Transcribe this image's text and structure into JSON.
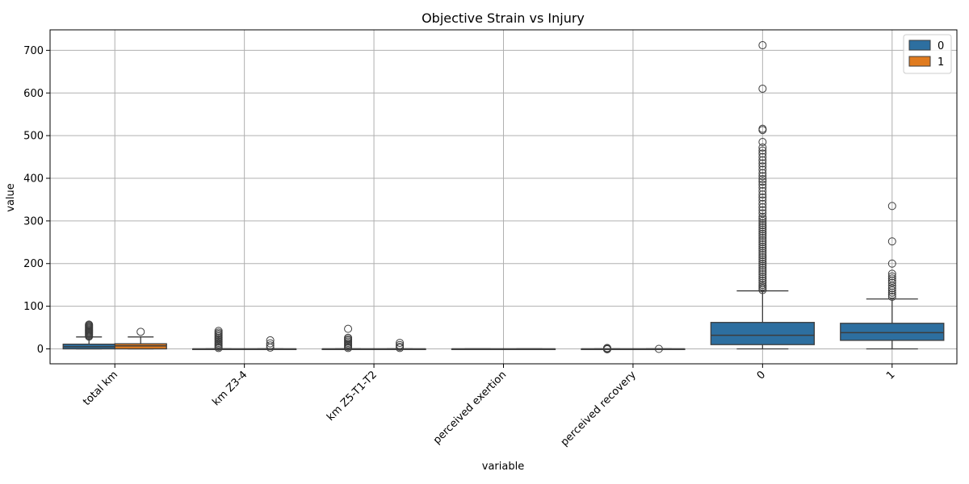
{
  "chart_data": {
    "type": "box",
    "title": "Objective Strain vs Injury",
    "xlabel": "variable",
    "ylabel": "value",
    "ylim": [
      -35,
      748
    ],
    "yticks": [
      0,
      100,
      200,
      300,
      400,
      500,
      600,
      700
    ],
    "grid": true,
    "legend": {
      "placement": "top-right",
      "entries": [
        "0",
        "1"
      ]
    },
    "colors": {
      "0": "#2d6fa0",
      "1": "#e07b1f",
      "grid": "#b0b0b0",
      "line": "#3d3d3d"
    },
    "categories": [
      "total km",
      "km Z3-4",
      "km Z5-T1-T2",
      "perceived exertion",
      "perceived recovery",
      "0",
      "1"
    ],
    "boxes": [
      {
        "category": "total km",
        "series": "0",
        "q1": 0,
        "median": 5,
        "q3": 11,
        "whisker_low": 0,
        "whisker_high": 28,
        "outliers": [
          29,
          31,
          33,
          35,
          37,
          39,
          41,
          43,
          45,
          47,
          49,
          51,
          53,
          55,
          57
        ]
      },
      {
        "category": "total km",
        "series": "1",
        "q1": 0,
        "median": 7,
        "q3": 12,
        "whisker_low": 0,
        "whisker_high": 28,
        "outliers": [
          40
        ]
      },
      {
        "category": "km Z3-4",
        "series": "0",
        "q1": 0,
        "median": 0,
        "q3": 0,
        "whisker_low": 0,
        "whisker_high": 0,
        "outliers": [
          2,
          5,
          8,
          11,
          14,
          17,
          20,
          23,
          26,
          29,
          32,
          35,
          38,
          42
        ]
      },
      {
        "category": "km Z3-4",
        "series": "1",
        "q1": 0,
        "median": 0,
        "q3": 0,
        "whisker_low": 0,
        "whisker_high": 0,
        "outliers": [
          3,
          8,
          13,
          20
        ]
      },
      {
        "category": "km Z5-T1-T2",
        "series": "0",
        "q1": 0,
        "median": 0,
        "q3": 0,
        "whisker_low": 0,
        "whisker_high": 0,
        "outliers": [
          2,
          5,
          8,
          11,
          14,
          17,
          20,
          23,
          26,
          47
        ]
      },
      {
        "category": "km Z5-T1-T2",
        "series": "1",
        "q1": 0,
        "median": 0,
        "q3": 0,
        "whisker_low": 0,
        "whisker_high": 0,
        "outliers": [
          2,
          5,
          9,
          14
        ]
      },
      {
        "category": "perceived exertion",
        "series": "0",
        "q1": 0,
        "median": 0,
        "q3": 0,
        "whisker_low": 0,
        "whisker_high": 0,
        "outliers": []
      },
      {
        "category": "perceived exertion",
        "series": "1",
        "q1": 0,
        "median": 0,
        "q3": 0,
        "whisker_low": 0,
        "whisker_high": 0,
        "outliers": []
      },
      {
        "category": "perceived recovery",
        "series": "0",
        "q1": 0,
        "median": 0,
        "q3": 0,
        "whisker_low": 0,
        "whisker_high": 0,
        "outliers": [
          -1,
          0,
          1,
          2
        ]
      },
      {
        "category": "perceived recovery",
        "series": "1",
        "q1": 0,
        "median": 0,
        "q3": 0,
        "whisker_low": 0,
        "whisker_high": 0,
        "outliers": [
          0
        ]
      },
      {
        "category": "0",
        "series": "0",
        "q1": 10,
        "median": 32,
        "q3": 62,
        "whisker_low": 0,
        "whisker_high": 136,
        "outliers": [
          138,
          142,
          146,
          150,
          155,
          160,
          165,
          170,
          175,
          180,
          185,
          190,
          195,
          200,
          205,
          210,
          215,
          220,
          225,
          230,
          235,
          240,
          245,
          250,
          255,
          260,
          265,
          270,
          275,
          280,
          285,
          290,
          295,
          300,
          305,
          310,
          318,
          325,
          332,
          340,
          348,
          355,
          362,
          370,
          378,
          385,
          392,
          398,
          405,
          412,
          420,
          428,
          435,
          442,
          450,
          458,
          465,
          472,
          485,
          513,
          516,
          610,
          712
        ]
      },
      {
        "category": "1",
        "series": "0",
        "q1": 20,
        "median": 38,
        "q3": 60,
        "whisker_low": 0,
        "whisker_high": 117,
        "outliers": [
          122,
          127,
          132,
          137,
          142,
          148,
          155,
          160,
          165,
          170,
          176,
          200,
          252,
          335
        ]
      }
    ]
  }
}
